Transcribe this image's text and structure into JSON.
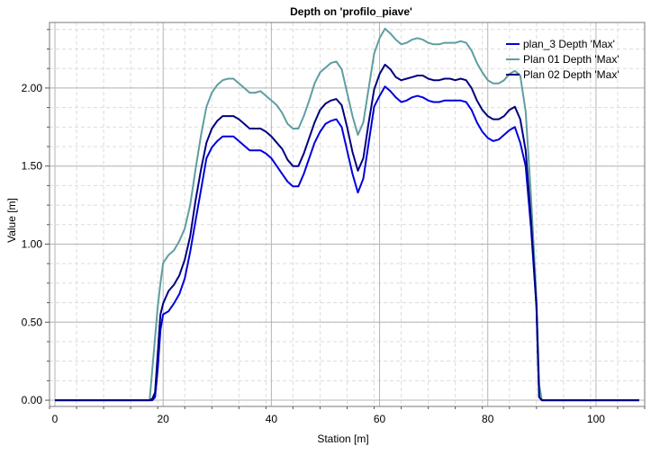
{
  "chart_data": {
    "type": "line",
    "title": "Depth on 'profilo_piave'",
    "xlabel": "Station [m]",
    "ylabel": "Value [m]",
    "xlim": [
      -1,
      109
    ],
    "ylim": [
      -0.04,
      2.42
    ],
    "x_ticks": [
      0,
      20,
      40,
      60,
      80,
      100
    ],
    "y_ticks": [
      0.0,
      0.5,
      1.0,
      1.5,
      2.0
    ],
    "x_tick_labels": [
      "0",
      "20",
      "40",
      "60",
      "80",
      "100"
    ],
    "y_tick_labels": [
      "0.00",
      "0.50",
      "1.00",
      "1.50",
      "2.00"
    ],
    "grid": true,
    "legend_position": "top-right",
    "x": [
      0,
      5,
      10,
      15,
      17.5,
      18,
      18.5,
      19,
      19.5,
      20,
      21,
      22,
      23,
      24,
      25,
      26,
      27,
      28,
      29,
      30,
      31,
      32,
      33,
      34,
      35,
      36,
      37,
      38,
      39,
      40,
      41,
      42,
      43,
      44,
      45,
      46,
      47,
      48,
      49,
      50,
      51,
      52,
      53,
      54,
      55,
      56,
      57,
      58,
      59,
      60,
      61,
      62,
      63,
      64,
      65,
      66,
      67,
      68,
      69,
      70,
      71,
      72,
      73,
      74,
      75,
      76,
      77,
      78,
      79,
      80,
      81,
      82,
      83,
      84,
      85,
      86,
      87,
      88,
      89,
      89.5,
      90,
      95,
      100,
      105,
      108
    ],
    "series": [
      {
        "name": "plan_3 Depth 'Max'",
        "color": "#0000dd",
        "values": [
          0,
          0,
          0,
          0,
          0,
          0,
          0.02,
          0.2,
          0.45,
          0.55,
          0.57,
          0.62,
          0.68,
          0.78,
          0.95,
          1.15,
          1.35,
          1.55,
          1.62,
          1.66,
          1.69,
          1.69,
          1.69,
          1.66,
          1.63,
          1.6,
          1.6,
          1.6,
          1.58,
          1.55,
          1.5,
          1.45,
          1.4,
          1.37,
          1.37,
          1.45,
          1.55,
          1.65,
          1.72,
          1.77,
          1.79,
          1.8,
          1.75,
          1.6,
          1.45,
          1.33,
          1.42,
          1.65,
          1.88,
          1.95,
          2.01,
          1.98,
          1.94,
          1.91,
          1.92,
          1.94,
          1.95,
          1.94,
          1.92,
          1.91,
          1.91,
          1.92,
          1.92,
          1.92,
          1.92,
          1.91,
          1.86,
          1.78,
          1.72,
          1.68,
          1.66,
          1.67,
          1.7,
          1.73,
          1.75,
          1.65,
          1.5,
          1.1,
          0.6,
          0.02,
          0,
          0,
          0,
          0,
          0
        ]
      },
      {
        "name": "Plan 01 Depth 'Max'",
        "color": "#5f9ea0",
        "values": [
          0,
          0,
          0,
          0,
          0,
          0.2,
          0.4,
          0.6,
          0.75,
          0.88,
          0.93,
          0.96,
          1.02,
          1.1,
          1.25,
          1.48,
          1.7,
          1.88,
          1.97,
          2.02,
          2.05,
          2.06,
          2.06,
          2.03,
          2.0,
          1.97,
          1.97,
          1.98,
          1.95,
          1.92,
          1.89,
          1.84,
          1.77,
          1.74,
          1.74,
          1.82,
          1.92,
          2.03,
          2.1,
          2.13,
          2.16,
          2.17,
          2.12,
          1.97,
          1.82,
          1.7,
          1.78,
          2.0,
          2.22,
          2.32,
          2.38,
          2.35,
          2.31,
          2.28,
          2.29,
          2.31,
          2.32,
          2.31,
          2.29,
          2.28,
          2.28,
          2.29,
          2.29,
          2.29,
          2.3,
          2.29,
          2.24,
          2.16,
          2.1,
          2.05,
          2.03,
          2.03,
          2.05,
          2.09,
          2.11,
          2.08,
          1.85,
          1.3,
          0.65,
          0.1,
          0,
          0,
          0,
          0,
          0
        ]
      },
      {
        "name": "Plan 02 Depth 'Max'",
        "color": "#000080",
        "values": [
          0,
          0,
          0,
          0,
          0,
          0.01,
          0.05,
          0.3,
          0.55,
          0.62,
          0.7,
          0.74,
          0.8,
          0.9,
          1.05,
          1.28,
          1.48,
          1.65,
          1.74,
          1.79,
          1.82,
          1.82,
          1.82,
          1.8,
          1.77,
          1.74,
          1.74,
          1.74,
          1.72,
          1.69,
          1.65,
          1.61,
          1.54,
          1.5,
          1.5,
          1.58,
          1.68,
          1.78,
          1.86,
          1.9,
          1.92,
          1.93,
          1.89,
          1.75,
          1.59,
          1.47,
          1.55,
          1.78,
          1.99,
          2.09,
          2.15,
          2.12,
          2.07,
          2.05,
          2.06,
          2.07,
          2.08,
          2.08,
          2.06,
          2.05,
          2.05,
          2.06,
          2.06,
          2.05,
          2.06,
          2.05,
          2.0,
          1.92,
          1.86,
          1.82,
          1.8,
          1.8,
          1.82,
          1.86,
          1.88,
          1.8,
          1.6,
          1.15,
          0.6,
          0.02,
          0,
          0,
          0,
          0,
          0
        ]
      }
    ]
  }
}
